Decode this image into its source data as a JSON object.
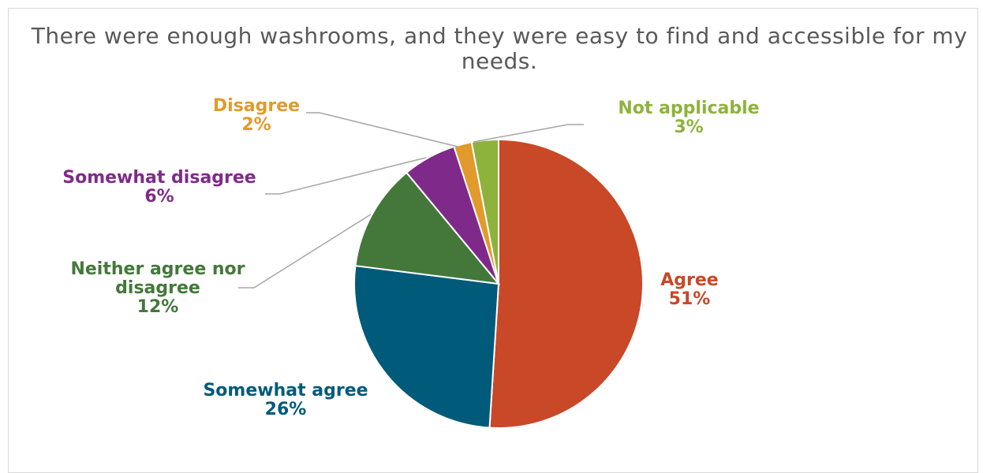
{
  "chart_data": {
    "type": "pie",
    "title": "There were enough washrooms, and they were easy to find and accessible for my needs.",
    "slices": [
      {
        "label": "Agree",
        "value": 51,
        "value_label": "51%",
        "color": "#C84828"
      },
      {
        "label": "Somewhat agree",
        "value": 26,
        "value_label": "26%",
        "color": "#005A7A"
      },
      {
        "label": "Neither agree nor disagree",
        "label_lines": [
          "Neither agree nor",
          "disagree"
        ],
        "value": 12,
        "value_label": "12%",
        "color": "#43783A"
      },
      {
        "label": "Somewhat disagree",
        "value": 6,
        "value_label": "6%",
        "color": "#7F2A8A"
      },
      {
        "label": "Disagree",
        "value": 2,
        "value_label": "2%",
        "color": "#E19A2B"
      },
      {
        "label": "Not applicable",
        "value": 3,
        "value_label": "3%",
        "color": "#8DB33C"
      }
    ]
  }
}
